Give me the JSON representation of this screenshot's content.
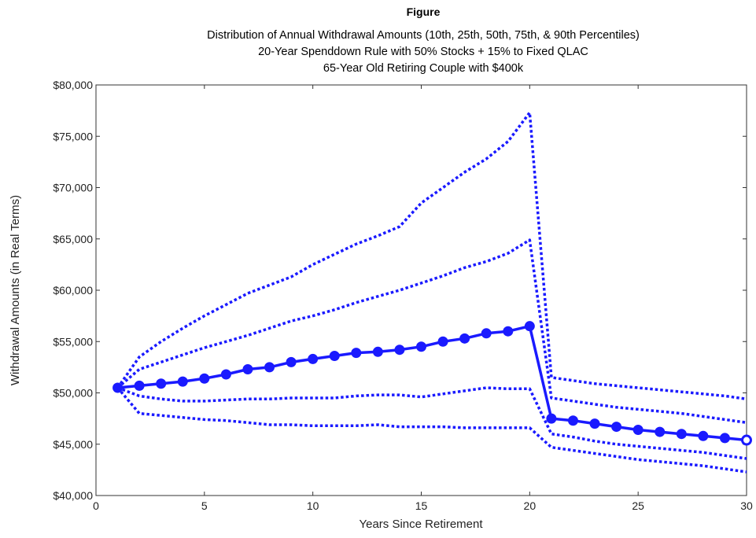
{
  "chart_data": {
    "type": "line",
    "title": "Figure",
    "subtitle": [
      "Distribution of Annual Withdrawal Amounts (10th, 25th, 50th, 75th, & 90th Percentiles)",
      "20-Year Spenddown Rule with 50% Stocks + 15% to Fixed QLAC",
      "65-Year Old Retiring Couple with $400k"
    ],
    "xlabel": "Years Since Retirement",
    "ylabel": "Withdrawal Amounts (in Real Terms)",
    "xlim": [
      0,
      30
    ],
    "ylim": [
      40000,
      80000
    ],
    "x_ticks": [
      0,
      5,
      10,
      15,
      20,
      25,
      30
    ],
    "x_tick_labels": [
      "0",
      "5",
      "10",
      "15",
      "20",
      "25",
      "30"
    ],
    "y_ticks": [
      40000,
      45000,
      50000,
      55000,
      60000,
      65000,
      70000,
      75000,
      80000
    ],
    "y_tick_labels": [
      "$40,000",
      "$45,000",
      "$50,000",
      "$55,000",
      "$60,000",
      "$65,000",
      "$70,000",
      "$75,000",
      "$80,000"
    ],
    "grid": false,
    "line_color": "#1a1aff",
    "x": [
      1,
      2,
      3,
      4,
      5,
      6,
      7,
      8,
      9,
      10,
      11,
      12,
      13,
      14,
      15,
      16,
      17,
      18,
      19,
      20,
      21,
      22,
      23,
      24,
      25,
      26,
      27,
      28,
      29,
      30
    ],
    "series": [
      {
        "percentile": 90,
        "style": "dotted",
        "values": [
          50500,
          53500,
          55000,
          56300,
          57500,
          58600,
          59700,
          60500,
          61300,
          62500,
          63500,
          64500,
          65300,
          66200,
          68500,
          70000,
          71500,
          72800,
          74500,
          77300,
          51500,
          51200,
          50900,
          50700,
          50500,
          50300,
          50100,
          49900,
          49700,
          49400
        ]
      },
      {
        "percentile": 75,
        "style": "dotted",
        "values": [
          50500,
          52300,
          53000,
          53700,
          54400,
          55000,
          55600,
          56300,
          57000,
          57500,
          58100,
          58800,
          59400,
          60000,
          60700,
          61400,
          62200,
          62800,
          63600,
          64900,
          49500,
          49200,
          48900,
          48600,
          48400,
          48200,
          48000,
          47700,
          47400,
          47100
        ]
      },
      {
        "percentile": 50,
        "style": "solid-markers",
        "values": [
          50500,
          50700,
          50900,
          51100,
          51400,
          51800,
          52300,
          52500,
          53000,
          53300,
          53600,
          53900,
          54000,
          54200,
          54500,
          55000,
          55300,
          55800,
          56000,
          56500,
          47500,
          47300,
          47000,
          46700,
          46400,
          46200,
          46000,
          45800,
          45600,
          45400
        ]
      },
      {
        "percentile": 25,
        "style": "dotted",
        "values": [
          50500,
          49700,
          49400,
          49200,
          49200,
          49300,
          49400,
          49400,
          49500,
          49500,
          49500,
          49700,
          49800,
          49800,
          49600,
          49900,
          50200,
          50500,
          50400,
          50400,
          46000,
          45700,
          45300,
          45000,
          44800,
          44600,
          44400,
          44200,
          43900,
          43600
        ]
      },
      {
        "percentile": 10,
        "style": "dotted",
        "values": [
          50500,
          48000,
          47800,
          47600,
          47400,
          47300,
          47100,
          46900,
          46900,
          46800,
          46800,
          46800,
          46900,
          46700,
          46700,
          46700,
          46600,
          46600,
          46600,
          46600,
          44700,
          44400,
          44100,
          43800,
          43500,
          43300,
          43100,
          42900,
          42600,
          42300
        ]
      }
    ]
  }
}
